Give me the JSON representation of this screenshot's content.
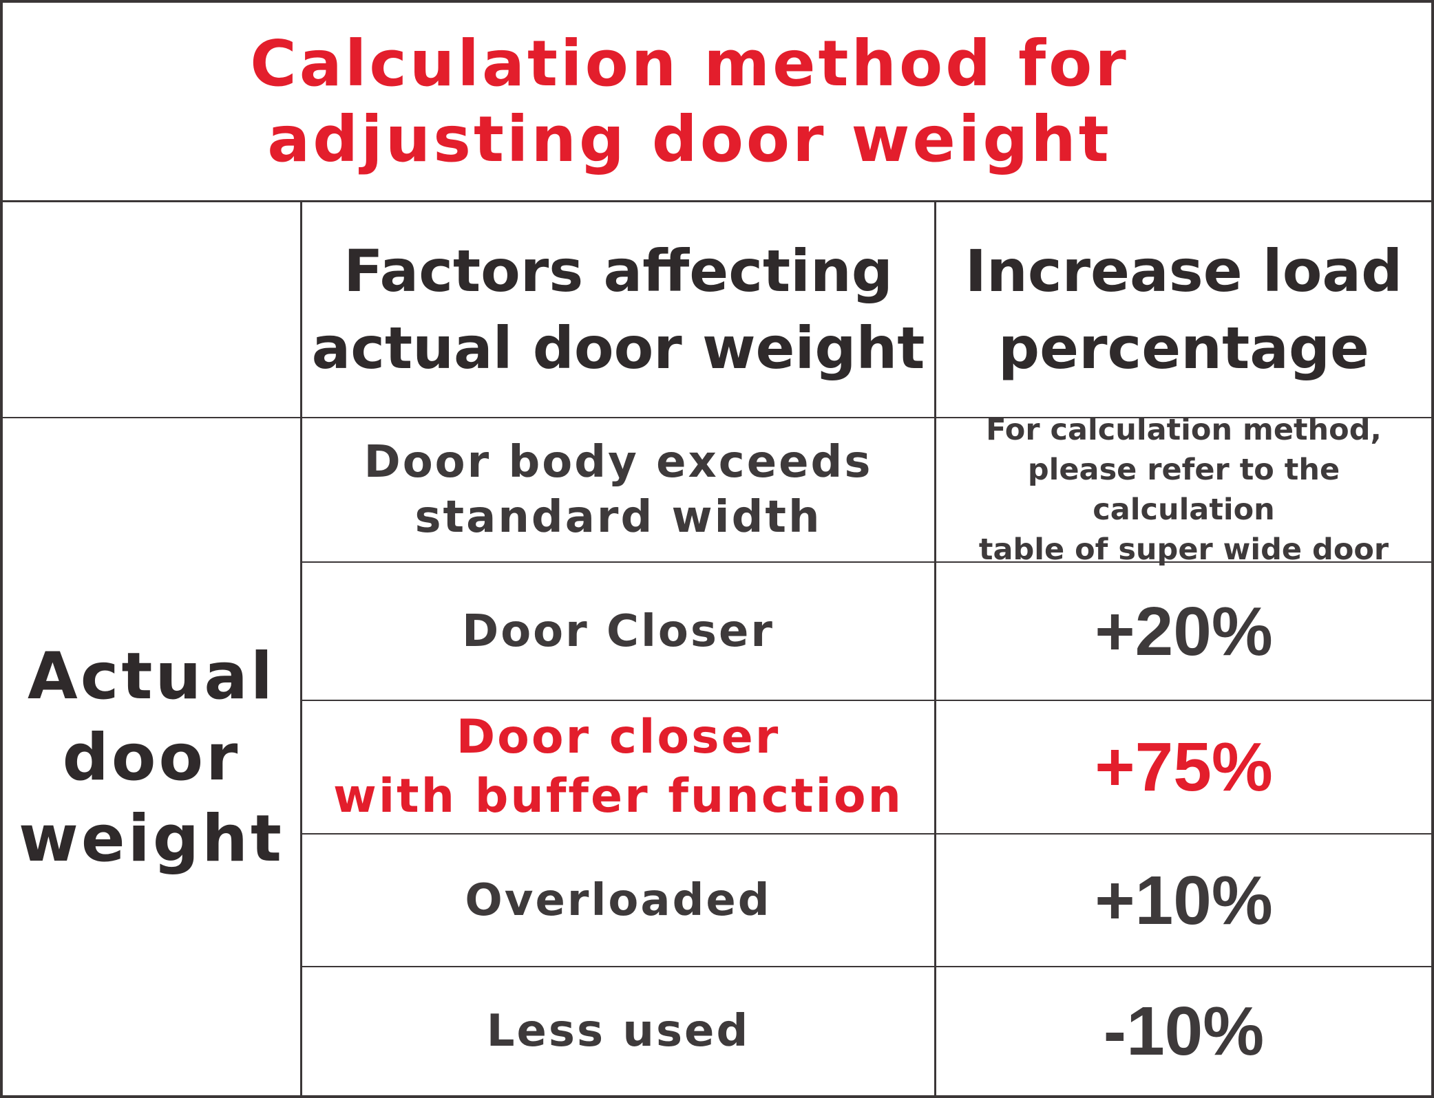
{
  "title": {
    "line1": "Calculation method for",
    "line2": "adjusting door weight"
  },
  "headers": {
    "factors_line1": "Factors affecting",
    "factors_line2": "actual door weight",
    "increase_line1": "Increase load",
    "increase_line2": "percentage"
  },
  "side_label": {
    "line1": "Actual",
    "line2": "door",
    "line3": "weight"
  },
  "rows": [
    {
      "factor_line1": "Door body exceeds",
      "factor_line2": "standard width",
      "value_line1": "For calculation method,",
      "value_line2": "please refer to the calculation",
      "value_line3": "table of super wide door"
    },
    {
      "factor_line1": "Door Closer",
      "value": "+20%"
    },
    {
      "factor_line1": "Door closer",
      "factor_line2": "with buffer function",
      "value": "+75%"
    },
    {
      "factor_line1": "Overloaded",
      "value": "+10%"
    },
    {
      "factor_line1": "Less used",
      "value": "-10%"
    }
  ],
  "colors": {
    "accent_red": "#e31e2c",
    "text_dark": "#3b3637",
    "border": "#3b3637",
    "background": "#ffffff"
  }
}
